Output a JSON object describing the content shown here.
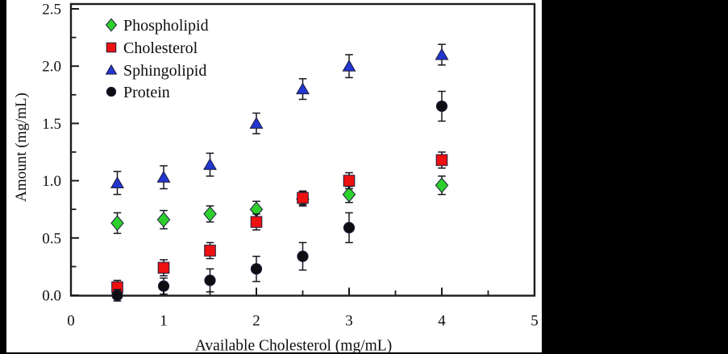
{
  "figure": {
    "background_color": "#000000",
    "panel_color": "#ffffff"
  },
  "chart_data": {
    "type": "scatter",
    "title": "",
    "xlabel": "Available Cholesterol (mg/mL)",
    "ylabel": "Amount (mg/mL)",
    "xlim": [
      0,
      5
    ],
    "ylim": [
      0.0,
      2.5
    ],
    "grid": false,
    "legend_position": "top-left-inside",
    "x_tick_values": [
      0,
      1,
      2,
      3,
      4,
      5
    ],
    "x_tick_labels": [
      "0",
      "1",
      "2",
      "3",
      "4",
      "5"
    ],
    "x_minor_tick_values": [
      0.5,
      1.5,
      2.5,
      3.5,
      4.5
    ],
    "y_tick_values": [
      0.0,
      0.5,
      1.0,
      1.5,
      2.0,
      2.5
    ],
    "y_tick_labels": [
      "0.0",
      "0.5",
      "1.0",
      "1.5",
      "2.0",
      "2.5"
    ],
    "y_minor_tick_values": [
      0.25,
      0.75,
      1.25,
      1.75,
      2.25
    ],
    "x": [
      0.5,
      1.0,
      1.5,
      2.0,
      2.5,
      3.0,
      4.0
    ],
    "series": [
      {
        "name": "Phospholipid",
        "marker": "diamond",
        "color": "#2ed02e",
        "values": [
          0.63,
          0.66,
          0.71,
          0.75,
          0.84,
          0.88,
          0.96
        ],
        "errors": [
          0.09,
          0.08,
          0.07,
          0.07,
          0.06,
          0.07,
          0.08
        ]
      },
      {
        "name": "Cholesterol",
        "marker": "square",
        "color": "#ee1111",
        "values": [
          0.07,
          0.24,
          0.39,
          0.64,
          0.85,
          1.0,
          1.18
        ],
        "errors": [
          0.06,
          0.07,
          0.07,
          0.07,
          0.06,
          0.07,
          0.07
        ]
      },
      {
        "name": "Sphingolipid",
        "marker": "triangle",
        "color": "#2336cf",
        "values": [
          0.98,
          1.03,
          1.14,
          1.5,
          1.8,
          2.0,
          2.1
        ],
        "errors": [
          0.1,
          0.1,
          0.1,
          0.09,
          0.09,
          0.1,
          0.09
        ]
      },
      {
        "name": "Protein",
        "marker": "circle",
        "color": "#0d0d12",
        "values": [
          0.0,
          0.08,
          0.13,
          0.23,
          0.34,
          0.59,
          1.65
        ],
        "errors": [
          0.05,
          0.07,
          0.1,
          0.11,
          0.12,
          0.13,
          0.13
        ]
      }
    ]
  }
}
